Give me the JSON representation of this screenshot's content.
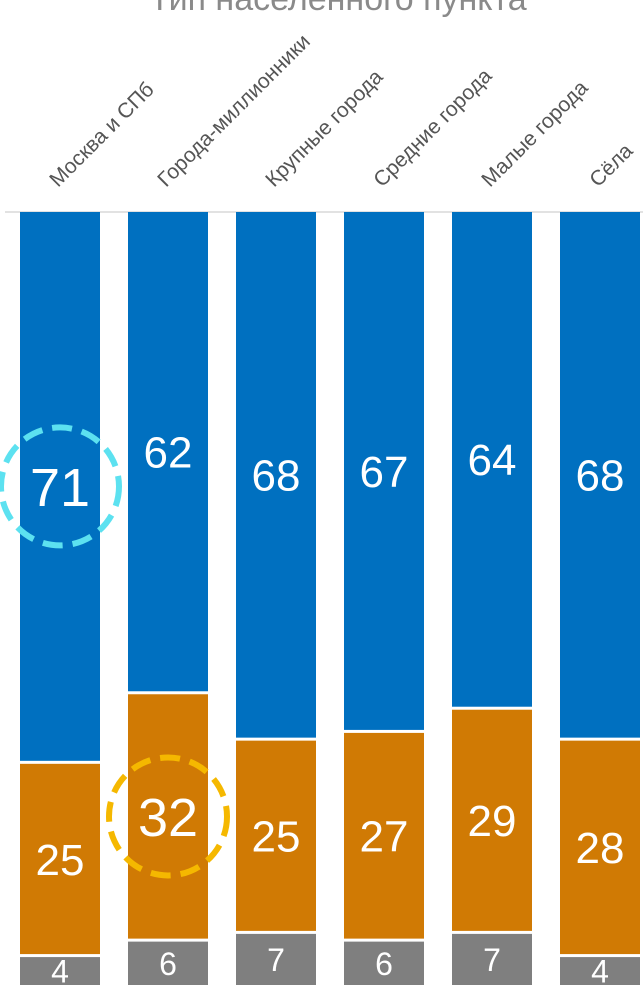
{
  "chart_data": {
    "type": "bar",
    "stacked": true,
    "percent": true,
    "title": "Тип населенного пункта",
    "categories": [
      "Москва и СПб",
      "Города-миллионники",
      "Крупные города",
      "Средние города",
      "Малые города",
      "Сёла"
    ],
    "series": [
      {
        "values": [
          4,
          6,
          7,
          6,
          7,
          4
        ],
        "color": "#7f7f7f"
      },
      {
        "values": [
          25,
          32,
          25,
          27,
          29,
          28
        ],
        "color": "#d07a04"
      },
      {
        "values": [
          71,
          62,
          68,
          67,
          64,
          68
        ],
        "color": "#0070c0"
      }
    ],
    "highlights": [
      {
        "category": "Москва и СПб",
        "series_index": 2,
        "color": "#5ce1f0"
      },
      {
        "category": "Города-миллионники",
        "series_index": 1,
        "color": "#f5b800"
      }
    ],
    "legend": "none",
    "grid": false
  }
}
